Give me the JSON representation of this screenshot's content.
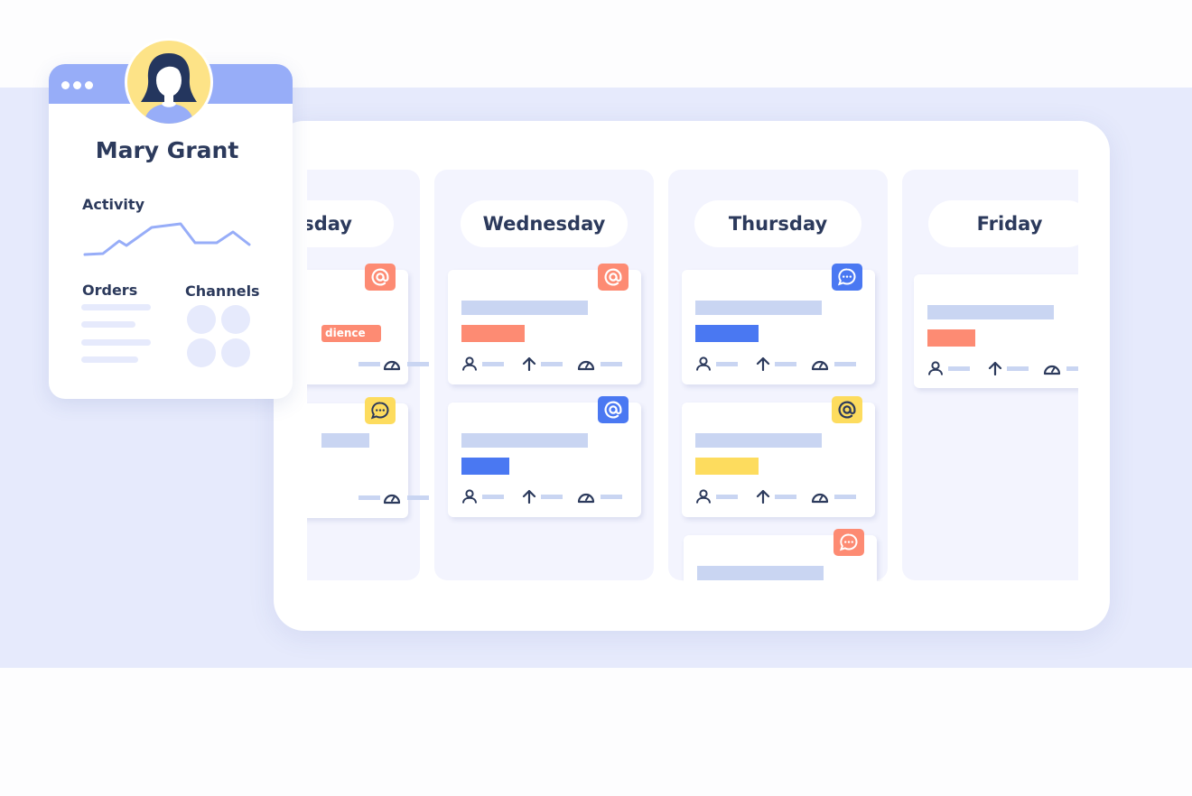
{
  "profile": {
    "name": "Mary Grant",
    "activity_label": "Activity",
    "orders_label": "Orders",
    "channels_label": "Channels"
  },
  "columns": [
    {
      "day": "sday",
      "cards": [
        {
          "tag": "dience"
        }
      ]
    },
    {
      "day": "Wednesday"
    },
    {
      "day": "Thursday"
    },
    {
      "day": "Friday"
    }
  ],
  "colors": {
    "coral": "#fd8b73",
    "blue": "#4a78f2",
    "yellow": "#fddc5e",
    "band": "#e6eafc",
    "header": "#97adf8"
  },
  "icons": [
    "at-icon",
    "chat-icon",
    "user-icon",
    "arrow-up-icon",
    "gauge-icon"
  ]
}
